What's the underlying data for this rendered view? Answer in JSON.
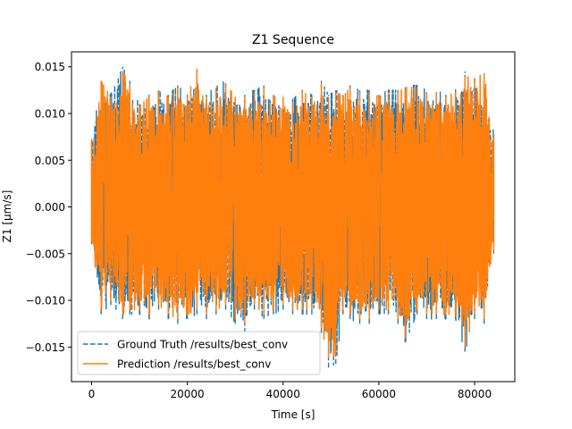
{
  "colors": {
    "ground_truth": "#1f77b4",
    "prediction": "#ff7f0e",
    "axes": "#000000",
    "background": "#ffffff"
  },
  "chart_data": {
    "type": "line",
    "title": "Z1 Sequence",
    "xlabel": "Time [s]",
    "ylabel": "Z1 [µm/s]",
    "xlim": [
      -4200,
      88400
    ],
    "ylim": [
      -0.0187,
      0.0166
    ],
    "grid": false,
    "legend_position": "lower-left",
    "x_ticks": [
      0,
      20000,
      40000,
      60000,
      80000
    ],
    "x_tick_labels": [
      "0",
      "20000",
      "40000",
      "60000",
      "80000"
    ],
    "y_ticks": [
      -0.015,
      -0.01,
      -0.005,
      0.0,
      0.005,
      0.01,
      0.015
    ],
    "y_tick_labels": [
      "−0.015",
      "−0.010",
      "−0.005",
      "0.000",
      "0.005",
      "0.010",
      "0.015"
    ],
    "x_range": [
      0,
      84000
    ],
    "series": [
      {
        "name": "Ground Truth /results/best_conv",
        "style": "dashed",
        "envelope": {
          "x": [
            0,
            2000,
            4000,
            6500,
            8000,
            10000,
            12000,
            14000,
            16000,
            18000,
            20000,
            22000,
            24000,
            26000,
            28000,
            30000,
            32000,
            34000,
            36000,
            38000,
            40000,
            42000,
            44000,
            46000,
            48000,
            49500,
            51000,
            52500,
            54000,
            56000,
            58000,
            60000,
            62000,
            64000,
            65500,
            68000,
            70000,
            72000,
            74000,
            76000,
            78000,
            80000,
            82000,
            84000
          ],
          "upper": [
            0.0075,
            0.013,
            0.012,
            0.015,
            0.0135,
            0.011,
            0.012,
            0.0125,
            0.012,
            0.013,
            0.012,
            0.0145,
            0.012,
            0.013,
            0.0135,
            0.012,
            0.012,
            0.0125,
            0.013,
            0.012,
            0.012,
            0.0115,
            0.0125,
            0.012,
            0.0135,
            0.012,
            0.0125,
            0.012,
            0.013,
            0.0125,
            0.0125,
            0.012,
            0.0125,
            0.0125,
            0.013,
            0.013,
            0.0125,
            0.0125,
            0.012,
            0.0125,
            0.0145,
            0.014,
            0.0125,
            0.008
          ],
          "lower": [
            -0.004,
            -0.0115,
            -0.0105,
            -0.012,
            -0.0115,
            -0.0115,
            -0.012,
            -0.011,
            -0.012,
            -0.0125,
            -0.012,
            -0.0115,
            -0.012,
            -0.0115,
            -0.011,
            -0.0125,
            -0.0135,
            -0.011,
            -0.012,
            -0.0115,
            -0.011,
            -0.0115,
            -0.0115,
            -0.0115,
            -0.0135,
            -0.0172,
            -0.0168,
            -0.0115,
            -0.012,
            -0.0125,
            -0.0125,
            -0.0115,
            -0.0115,
            -0.0125,
            -0.0145,
            -0.0115,
            -0.012,
            -0.012,
            -0.012,
            -0.012,
            -0.0155,
            -0.012,
            -0.0125,
            -0.005
          ]
        }
      },
      {
        "name": "Prediction /results/best_conv",
        "style": "solid",
        "envelope": {
          "x": [
            0,
            2000,
            4000,
            6500,
            8000,
            10000,
            12000,
            14000,
            16000,
            18000,
            20000,
            22000,
            24000,
            26000,
            28000,
            30000,
            32000,
            34000,
            36000,
            38000,
            40000,
            42000,
            44000,
            46000,
            48000,
            49500,
            51000,
            52500,
            54000,
            56000,
            58000,
            60000,
            62000,
            64000,
            65500,
            68000,
            70000,
            72000,
            74000,
            76000,
            78000,
            80000,
            82000,
            84000
          ],
          "upper": [
            0.0072,
            0.0135,
            0.0118,
            0.0145,
            0.0132,
            0.0108,
            0.0118,
            0.0123,
            0.0118,
            0.0128,
            0.0118,
            0.0148,
            0.0118,
            0.0128,
            0.0132,
            0.0118,
            0.0118,
            0.0123,
            0.0128,
            0.0118,
            0.0118,
            0.0113,
            0.0123,
            0.0118,
            0.0133,
            0.0118,
            0.0123,
            0.0118,
            0.0128,
            0.0123,
            0.0123,
            0.0118,
            0.0123,
            0.0123,
            0.0128,
            0.0128,
            0.0123,
            0.0123,
            0.0118,
            0.0123,
            0.014,
            0.0138,
            0.0143,
            0.0078
          ],
          "lower": [
            -0.0038,
            -0.011,
            -0.01,
            -0.0115,
            -0.011,
            -0.011,
            -0.0115,
            -0.0105,
            -0.0115,
            -0.012,
            -0.0115,
            -0.011,
            -0.0115,
            -0.011,
            -0.0105,
            -0.012,
            -0.0125,
            -0.0105,
            -0.0115,
            -0.011,
            -0.0105,
            -0.011,
            -0.011,
            -0.011,
            -0.013,
            -0.0162,
            -0.0158,
            -0.011,
            -0.0115,
            -0.012,
            -0.012,
            -0.011,
            -0.011,
            -0.012,
            -0.014,
            -0.011,
            -0.0115,
            -0.0115,
            -0.0115,
            -0.0115,
            -0.015,
            -0.0115,
            -0.012,
            -0.0048
          ]
        }
      }
    ]
  }
}
